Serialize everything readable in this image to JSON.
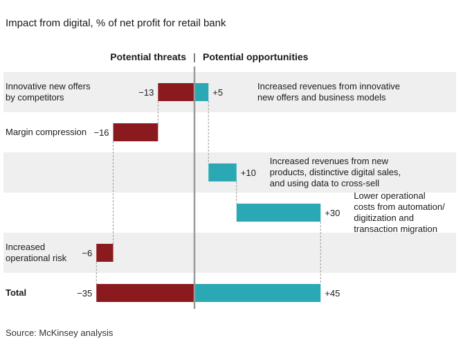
{
  "chart_data": {
    "type": "bar",
    "title": "Impact from digital, % of net profit for retail bank",
    "legend": {
      "threats": "Potential threats",
      "separator": "|",
      "opportunities": "Potential opportunities"
    },
    "source": "Source: McKinsey analysis",
    "x_range": [
      -35,
      45
    ],
    "rows": [
      {
        "label": [
          "Innovative new offers",
          "by competitors"
        ],
        "threat": -13,
        "threat_label": "−13",
        "opportunity": 5,
        "opportunity_label": "+5",
        "opportunity_text": [
          "Increased revenues from innovative",
          "new offers and business models"
        ],
        "shaded": true
      },
      {
        "label": [
          "Margin compression"
        ],
        "threat": -16,
        "threat_label": "−16",
        "shaded": false
      },
      {
        "label": [],
        "opportunity": 10,
        "opportunity_label": "+10",
        "opportunity_text": [
          "Increased revenues from new",
          "products, distinctive digital sales,",
          "and using data to cross-sell"
        ],
        "shaded": true
      },
      {
        "label": [],
        "opportunity": 30,
        "opportunity_label": "+30",
        "opportunity_text": [
          "Lower operational",
          "costs from automation/",
          "digitization and",
          "transaction migration"
        ],
        "shaded": false
      },
      {
        "label": [
          "Increased",
          "operational risk"
        ],
        "threat": -6,
        "threat_label": "−6",
        "shaded": true
      },
      {
        "label": [
          "Total"
        ],
        "total": true,
        "threat": -35,
        "threat_label": "−35",
        "opportunity": 45,
        "opportunity_label": "+45",
        "shaded": false
      }
    ],
    "colors": {
      "threat": "#8b1a1f",
      "opportunity": "#2aa9b4",
      "band": "#efefef",
      "axis": "#9a9a9a",
      "connector": "#999999"
    }
  }
}
